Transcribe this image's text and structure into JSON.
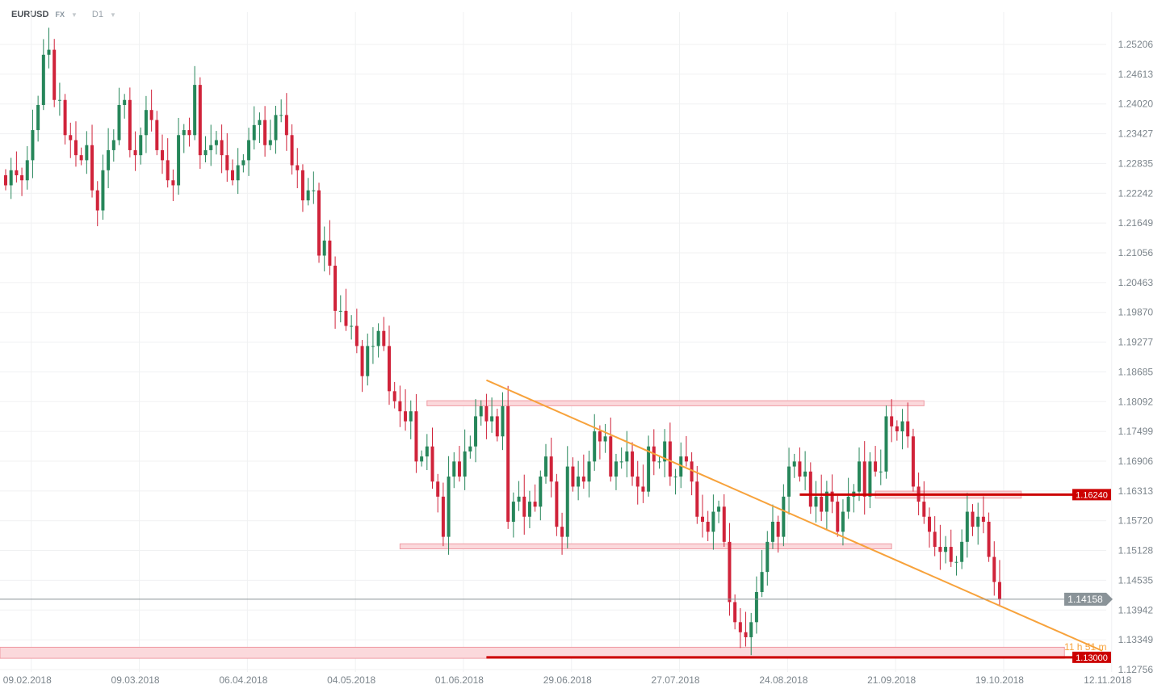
{
  "header": {
    "symbol": "EURUSD",
    "exchange": "FX",
    "timeframe": "D1"
  },
  "chart_data": {
    "type": "candlestick",
    "title": "EURUSD",
    "start_date": "2018-02-05",
    "closes": [
      1.224,
      1.227,
      1.226,
      1.225,
      1.229,
      1.235,
      1.24,
      1.25,
      1.251,
      1.241,
      1.241,
      1.234,
      1.233,
      1.23,
      1.229,
      1.232,
      1.223,
      1.219,
      1.227,
      1.231,
      1.233,
      1.24,
      1.241,
      1.231,
      1.23,
      1.234,
      1.239,
      1.237,
      1.231,
      1.229,
      1.225,
      1.224,
      1.234,
      1.235,
      1.234,
      1.244,
      1.23,
      1.231,
      1.232,
      1.233,
      1.23,
      1.227,
      1.225,
      1.228,
      1.229,
      1.233,
      1.236,
      1.237,
      1.232,
      1.233,
      1.238,
      1.238,
      1.234,
      1.228,
      1.227,
      1.221,
      1.223,
      1.223,
      1.21,
      1.213,
      1.208,
      1.199,
      1.199,
      1.196,
      1.196,
      1.192,
      1.186,
      1.192,
      1.192,
      1.195,
      1.192,
      1.183,
      1.181,
      1.179,
      1.177,
      1.179,
      1.169,
      1.17,
      1.172,
      1.165,
      1.162,
      1.154,
      1.166,
      1.169,
      1.166,
      1.171,
      1.172,
      1.178,
      1.18,
      1.177,
      1.178,
      1.174,
      1.18,
      1.157,
      1.161,
      1.162,
      1.158,
      1.161,
      1.16,
      1.166,
      1.17,
      1.165,
      1.156,
      1.154,
      1.168,
      1.164,
      1.166,
      1.165,
      1.169,
      1.175,
      1.173,
      1.174,
      1.166,
      1.169,
      1.169,
      1.171,
      1.166,
      1.164,
      1.163,
      1.172,
      1.169,
      1.169,
      1.173,
      1.166,
      1.166,
      1.17,
      1.169,
      1.165,
      1.158,
      1.157,
      1.155,
      1.159,
      1.16,
      1.153,
      1.141,
      1.137,
      1.135,
      1.134,
      1.137,
      1.143,
      1.147,
      1.153,
      1.157,
      1.154,
      1.162,
      1.168,
      1.169,
      1.166,
      1.167,
      1.16,
      1.162,
      1.159,
      1.163,
      1.161,
      1.155,
      1.159,
      1.162,
      1.163,
      1.169,
      1.162,
      1.169,
      1.167,
      1.167,
      1.178,
      1.176,
      1.175,
      1.177,
      1.174,
      1.164,
      1.161,
      1.158,
      1.155,
      1.152,
      1.151,
      1.152,
      1.149,
      1.149,
      1.153,
      1.159,
      1.156,
      1.158,
      1.157,
      1.15,
      1.145,
      1.14158
    ],
    "x_tick_labels": [
      "09.02.2018",
      "09.03.2018",
      "06.04.2018",
      "04.05.2018",
      "01.06.2018",
      "29.06.2018",
      "27.07.2018",
      "24.08.2018",
      "21.09.2018",
      "19.10.2018",
      "12.11.2018"
    ],
    "y_tick_labels": [
      "1.25206",
      "1.24613",
      "1.24020",
      "1.23427",
      "1.22835",
      "1.22242",
      "1.21649",
      "1.21056",
      "1.20463",
      "1.19870",
      "1.19277",
      "1.18685",
      "1.18092",
      "1.17499",
      "1.16906",
      "1.16313",
      "1.15720",
      "1.15128",
      "1.14535",
      "1.13942",
      "1.13349",
      "1.12756"
    ],
    "ylim": [
      1.12756,
      1.25206
    ],
    "grid": true,
    "current_price": "1.14158",
    "countdown": "11 h 51 m",
    "colors": {
      "up": "#26865a",
      "down": "#d0233a",
      "trendline": "#f7a23b",
      "zone_fill": "#fbd9dc",
      "zone_stroke": "#ef9aa3",
      "level_line": "#cc0000",
      "price_line": "#8a9398"
    },
    "zones": [
      {
        "from": "2018-05-24",
        "to": "2018-10-01",
        "high": 1.1811,
        "low": 1.1801
      },
      {
        "from": "2018-05-17",
        "to": "2018-09-21",
        "high": 1.1526,
        "low": 1.1516
      },
      {
        "from": "2018-09-18",
        "to": "2018-10-25",
        "high": 1.1631,
        "low": 1.1617
      },
      {
        "from": "2018-01-31",
        "to": "2018-11-06",
        "high": 1.132,
        "low": 1.1298
      }
    ],
    "levels": [
      {
        "price": "1.16240",
        "from": "2018-08-29"
      },
      {
        "price": "1.13000",
        "from": "2018-06-08"
      }
    ],
    "trendline": {
      "from": {
        "date": "2018-06-08",
        "price": 1.1852
      },
      "to": {
        "date": "2018-11-15",
        "price": 1.1313
      }
    }
  }
}
